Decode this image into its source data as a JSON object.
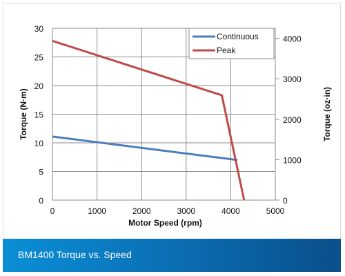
{
  "caption": "BM1400 Torque vs. Speed",
  "chart_data": {
    "type": "line",
    "xlabel": "Motor Speed (rpm)",
    "ylabel": "Torque (N·m)",
    "y2label": "Torque (oz·in)",
    "xlim": [
      0,
      5000
    ],
    "ylim": [
      0,
      30
    ],
    "y2lim": [
      0,
      4250
    ],
    "x_ticks": [
      "0",
      "1000",
      "2000",
      "3000",
      "4000",
      "5000"
    ],
    "y_ticks": [
      "0",
      "5",
      "10",
      "15",
      "20",
      "25",
      "30"
    ],
    "y2_ticks": [
      "0",
      "1000",
      "2000",
      "3000",
      "4000"
    ],
    "grid": true,
    "legend_position": "top-right",
    "series": [
      {
        "name": "Continuous",
        "color": "#4a7ebb",
        "x": [
          0,
          4150
        ],
        "y": [
          11.1,
          7.0
        ]
      },
      {
        "name": "Peak",
        "color": "#be4b48",
        "x": [
          0,
          3800,
          4300
        ],
        "y": [
          27.8,
          18.3,
          0
        ]
      }
    ]
  }
}
